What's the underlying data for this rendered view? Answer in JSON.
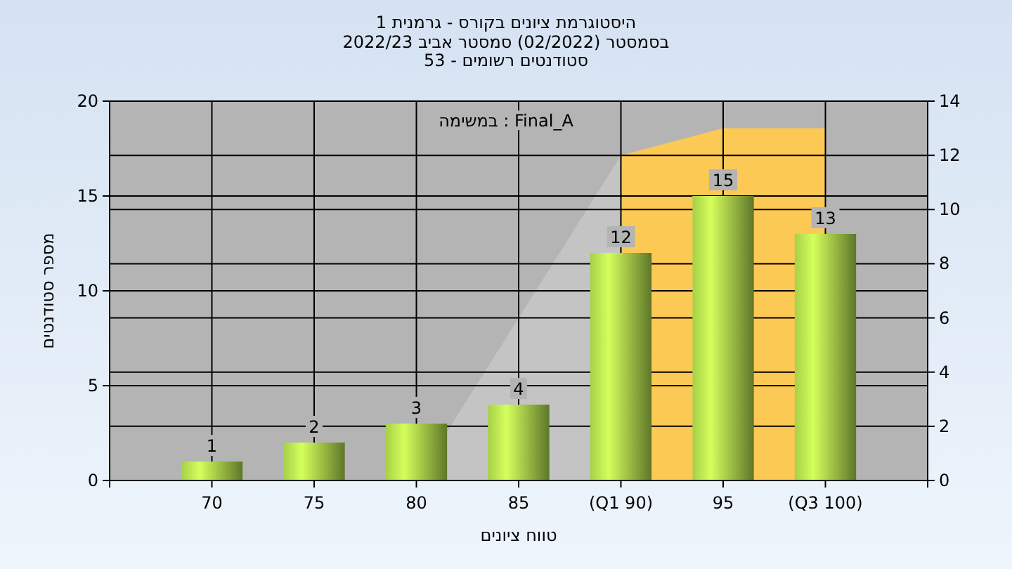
{
  "chart_data": {
    "type": "bar",
    "title": "היסטוגרמת ציונים בקורס - גרמנית 1",
    "subtitle": "בסמסטר  (02/2022)  סמסטר אביב 2022/23\nסטודנטים רשומים - 53",
    "xlabel": "טווח ציונים",
    "ylabel": "מספר סטודנטים",
    "annotations": [
      "במשימה : Final_A"
    ],
    "categories": [
      "70",
      "75",
      "80",
      "85",
      "(Q1 90)",
      "95",
      "(Q3 100)"
    ],
    "series": [
      {
        "type": "area",
        "axis": "y2",
        "color": "#c4c4c4",
        "values": [
          0,
          0,
          0,
          null,
          12,
          null,
          null
        ]
      },
      {
        "type": "area",
        "axis": "y2",
        "color": "#fdc955",
        "values": [
          null,
          null,
          null,
          null,
          12,
          13,
          13
        ]
      },
      {
        "color": "#86a83a",
        "values": [
          1,
          2,
          3,
          4,
          12,
          15,
          13
        ],
        "value_labels": [
          "1",
          "2",
          "3",
          "4",
          "12",
          "15",
          "13"
        ]
      }
    ],
    "ylim": [
      0,
      20
    ],
    "yticks": [
      0,
      5,
      10,
      15,
      20
    ],
    "y2lim": [
      0,
      14
    ],
    "y2ticks": [
      0,
      2,
      4,
      6,
      8,
      10,
      12,
      14
    ],
    "grid": true
  }
}
